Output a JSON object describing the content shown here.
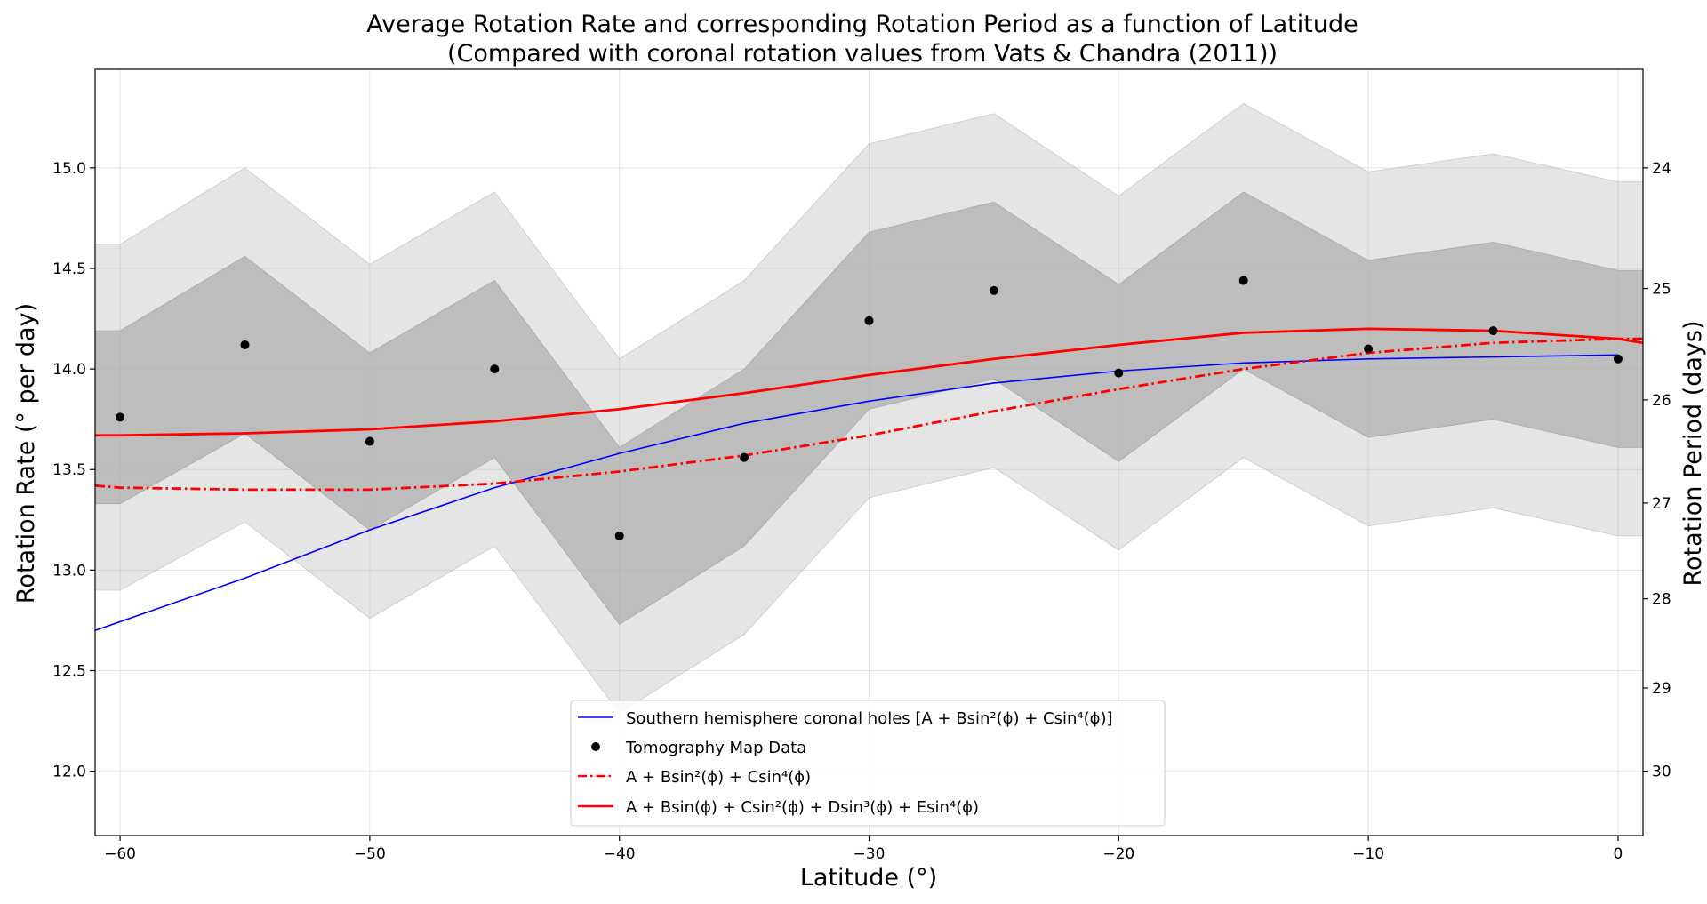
{
  "chart_data": {
    "type": "line",
    "title": "Average Rotation Rate and corresponding Rotation Period as a function of Latitude",
    "subtitle": "(Compared with coronal rotation values from Vats & Chandra (2011))",
    "xlabel": "Latitude (°)",
    "ylabel": "Rotation Rate (° per day)",
    "ylabel_right": "Rotation Period (days)",
    "xlim": [
      -61,
      1
    ],
    "ylim": [
      11.68,
      15.49
    ],
    "x_ticks": [
      -60,
      -50,
      -40,
      -30,
      -20,
      -10,
      0
    ],
    "x_tick_labels": [
      "−60",
      "−50",
      "−40",
      "−30",
      "−20",
      "−10",
      "0"
    ],
    "y_ticks": [
      12.0,
      12.5,
      13.0,
      13.5,
      14.0,
      14.5,
      15.0
    ],
    "y_tick_labels": [
      "12.0",
      "12.5",
      "13.0",
      "13.5",
      "14.0",
      "14.5",
      "15.0"
    ],
    "right_ticks_days": [
      24,
      25,
      26,
      27,
      28,
      29,
      30
    ],
    "right_tick_labels": [
      "24",
      "25",
      "26",
      "27",
      "28",
      "29",
      "30"
    ],
    "grid": true,
    "legend_position": "bottom-center",
    "latitudes": [
      -60,
      -55,
      -50,
      -45,
      -40,
      -35,
      -30,
      -25,
      -20,
      -15,
      -10,
      -5,
      0
    ],
    "tomography_values": [
      13.76,
      14.12,
      13.64,
      14.0,
      13.17,
      13.56,
      14.24,
      14.39,
      13.98,
      14.44,
      14.1,
      14.19,
      14.05
    ],
    "band_1sigma_upper": [
      14.19,
      14.56,
      14.08,
      14.44,
      13.61,
      14.0,
      14.68,
      14.83,
      14.42,
      14.88,
      14.54,
      14.63,
      14.49
    ],
    "band_1sigma_lower": [
      13.33,
      13.68,
      13.2,
      13.56,
      12.73,
      13.12,
      13.8,
      13.95,
      13.54,
      14.0,
      13.66,
      13.75,
      13.61
    ],
    "band_2sigma_upper": [
      14.62,
      15.0,
      14.52,
      14.88,
      14.05,
      14.44,
      15.12,
      15.27,
      14.86,
      15.32,
      14.98,
      15.07,
      14.93
    ],
    "band_2sigma_lower": [
      12.9,
      13.24,
      12.76,
      13.12,
      12.29,
      12.68,
      13.36,
      13.51,
      13.1,
      13.56,
      13.22,
      13.31,
      13.17
    ],
    "series": [
      {
        "name": "Southern hemisphere coronal holes [A + Bsin²(ϕ) + Csin⁴(ϕ)]",
        "style": "solid-thin",
        "color": "#0000ff",
        "x": [
          -61,
          -55,
          -50,
          -45,
          -40,
          -35,
          -30,
          -25,
          -20,
          -15,
          -10,
          -5,
          0
        ],
        "values": [
          12.7,
          12.96,
          13.2,
          13.41,
          13.58,
          13.73,
          13.84,
          13.93,
          13.99,
          14.03,
          14.05,
          14.06,
          14.07
        ]
      },
      {
        "name": "Tomography Map Data",
        "style": "markers",
        "color": "#000000"
      },
      {
        "name": "A + Bsin²(ϕ) + Csin⁴(ϕ)",
        "style": "dash-dot",
        "color": "#ff0000",
        "x": [
          -61,
          -60,
          -55,
          -50,
          -45,
          -40,
          -35,
          -30,
          -25,
          -20,
          -15,
          -10,
          -5,
          0,
          1
        ],
        "values": [
          13.42,
          13.41,
          13.4,
          13.4,
          13.43,
          13.49,
          13.57,
          13.67,
          13.79,
          13.9,
          14.0,
          14.08,
          14.13,
          14.15,
          14.15
        ]
      },
      {
        "name": "A + Bsin(ϕ) + Csin²(ϕ) + Dsin³(ϕ) + Esin⁴(ϕ)",
        "style": "solid-thick",
        "color": "#ff0000",
        "x": [
          -61,
          -60,
          -55,
          -50,
          -45,
          -40,
          -35,
          -30,
          -25,
          -20,
          -15,
          -10,
          -5,
          0,
          1
        ],
        "values": [
          13.67,
          13.67,
          13.68,
          13.7,
          13.74,
          13.8,
          13.88,
          13.97,
          14.05,
          14.12,
          14.18,
          14.2,
          14.19,
          14.15,
          14.13
        ]
      }
    ]
  },
  "colors": {
    "band_outer": "#e5e5e5",
    "band_inner": "#bdbdbd",
    "blue_line": "#0000ff",
    "red_line": "#ff0000",
    "points": "#000000"
  }
}
